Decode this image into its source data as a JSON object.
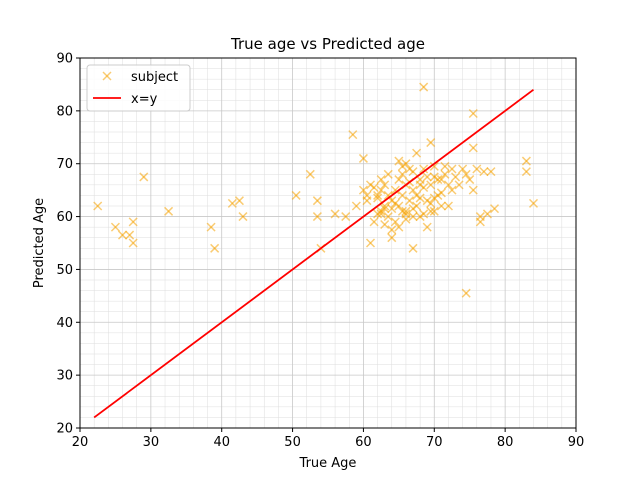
{
  "chart_data": {
    "type": "scatter",
    "title": "True age vs Predicted age",
    "xlabel": "True Age",
    "ylabel": "Predicted Age",
    "xlim": [
      20,
      90
    ],
    "ylim": [
      20,
      90
    ],
    "xticks": [
      "20",
      "30",
      "40",
      "50",
      "60",
      "70",
      "80",
      "90"
    ],
    "yticks": [
      "20",
      "30",
      "40",
      "50",
      "60",
      "70",
      "80",
      "90"
    ],
    "grid": "major and minor",
    "legend_position": "top-left",
    "colors": {
      "scatter": "#f5a300",
      "line": "#ff0000"
    },
    "series": [
      {
        "name": "subject",
        "kind": "scatter",
        "marker": "x",
        "points": [
          [
            22.5,
            62
          ],
          [
            25,
            58
          ],
          [
            26,
            56.5
          ],
          [
            27,
            56.5
          ],
          [
            27.5,
            55
          ],
          [
            27.5,
            59
          ],
          [
            29,
            67.5
          ],
          [
            32.5,
            61
          ],
          [
            38.5,
            58
          ],
          [
            39,
            54
          ],
          [
            41.5,
            62.5
          ],
          [
            42.5,
            63
          ],
          [
            43,
            60
          ],
          [
            50.5,
            64
          ],
          [
            52.5,
            68
          ],
          [
            53.5,
            60
          ],
          [
            53.5,
            63
          ],
          [
            54,
            54
          ],
          [
            56,
            60.5
          ],
          [
            57.5,
            60
          ],
          [
            58.5,
            75.5
          ],
          [
            59,
            62
          ],
          [
            60,
            71
          ],
          [
            60,
            65
          ],
          [
            60.5,
            63
          ],
          [
            61,
            55
          ],
          [
            61,
            66
          ],
          [
            61.5,
            59
          ],
          [
            62,
            64
          ],
          [
            62,
            60.5
          ],
          [
            62.5,
            61
          ],
          [
            62.5,
            67
          ],
          [
            63,
            62
          ],
          [
            63,
            66
          ],
          [
            63.5,
            60
          ],
          [
            63.5,
            68
          ],
          [
            64,
            56
          ],
          [
            64,
            63
          ],
          [
            64.5,
            65
          ],
          [
            64.5,
            59
          ],
          [
            65,
            70.5
          ],
          [
            65,
            67
          ],
          [
            65,
            62
          ],
          [
            65.5,
            64
          ],
          [
            65.5,
            68
          ],
          [
            66,
            70
          ],
          [
            66,
            66
          ],
          [
            66,
            61
          ],
          [
            66.5,
            63
          ],
          [
            66.5,
            69
          ],
          [
            67,
            54
          ],
          [
            67,
            65
          ],
          [
            67,
            60
          ],
          [
            67.5,
            72
          ],
          [
            67.5,
            62
          ],
          [
            68,
            67
          ],
          [
            68,
            66
          ],
          [
            68,
            60
          ],
          [
            68.5,
            84.5
          ],
          [
            68.5,
            69
          ],
          [
            69,
            63
          ],
          [
            69,
            58
          ],
          [
            69.5,
            74
          ],
          [
            69.5,
            66
          ],
          [
            70,
            67.5
          ],
          [
            70,
            61
          ],
          [
            70.5,
            64
          ],
          [
            71,
            67
          ],
          [
            71,
            62
          ],
          [
            71.5,
            69.5
          ],
          [
            72,
            66
          ],
          [
            72.5,
            69
          ],
          [
            73,
            67.5
          ],
          [
            73.5,
            66
          ],
          [
            74,
            69
          ],
          [
            74.5,
            45.5
          ],
          [
            75,
            67
          ],
          [
            75.5,
            73
          ],
          [
            75.5,
            65
          ],
          [
            75.5,
            79.5
          ],
          [
            76,
            69
          ],
          [
            76.5,
            60
          ],
          [
            76.5,
            59
          ],
          [
            77,
            68.5
          ],
          [
            77.5,
            60.5
          ],
          [
            78,
            68.5
          ],
          [
            78.5,
            61.5
          ],
          [
            83,
            70.5
          ],
          [
            83,
            68.5
          ],
          [
            84,
            62.5
          ],
          [
            60.5,
            64
          ],
          [
            61.5,
            65.5
          ],
          [
            62,
            63.5
          ],
          [
            62.5,
            65
          ],
          [
            63,
            61.5
          ],
          [
            63.5,
            64
          ],
          [
            64,
            61.5
          ],
          [
            64.5,
            62.5
          ],
          [
            65,
            58
          ],
          [
            65.5,
            61
          ],
          [
            66,
            60.5
          ],
          [
            66.5,
            66.5
          ],
          [
            67,
            61.5
          ],
          [
            67.5,
            64
          ],
          [
            68,
            63.5
          ],
          [
            68.5,
            60.5
          ],
          [
            69,
            67.5
          ],
          [
            69.5,
            62.5
          ],
          [
            70,
            63.5
          ],
          [
            70.5,
            67
          ],
          [
            71,
            64.5
          ],
          [
            71.5,
            68
          ],
          [
            72,
            62
          ],
          [
            63,
            58.5
          ],
          [
            64,
            57.5
          ],
          [
            66,
            59.5
          ],
          [
            68.5,
            65.5
          ],
          [
            70,
            69.5
          ],
          [
            72.5,
            65
          ],
          [
            74.5,
            68
          ],
          [
            65.5,
            69.5
          ],
          [
            67,
            68.5
          ],
          [
            62.5,
            60.5
          ],
          [
            69.5,
            61
          ]
        ]
      },
      {
        "name": "x=y",
        "kind": "line",
        "points": [
          [
            22,
            22
          ],
          [
            84,
            84
          ]
        ]
      }
    ]
  }
}
